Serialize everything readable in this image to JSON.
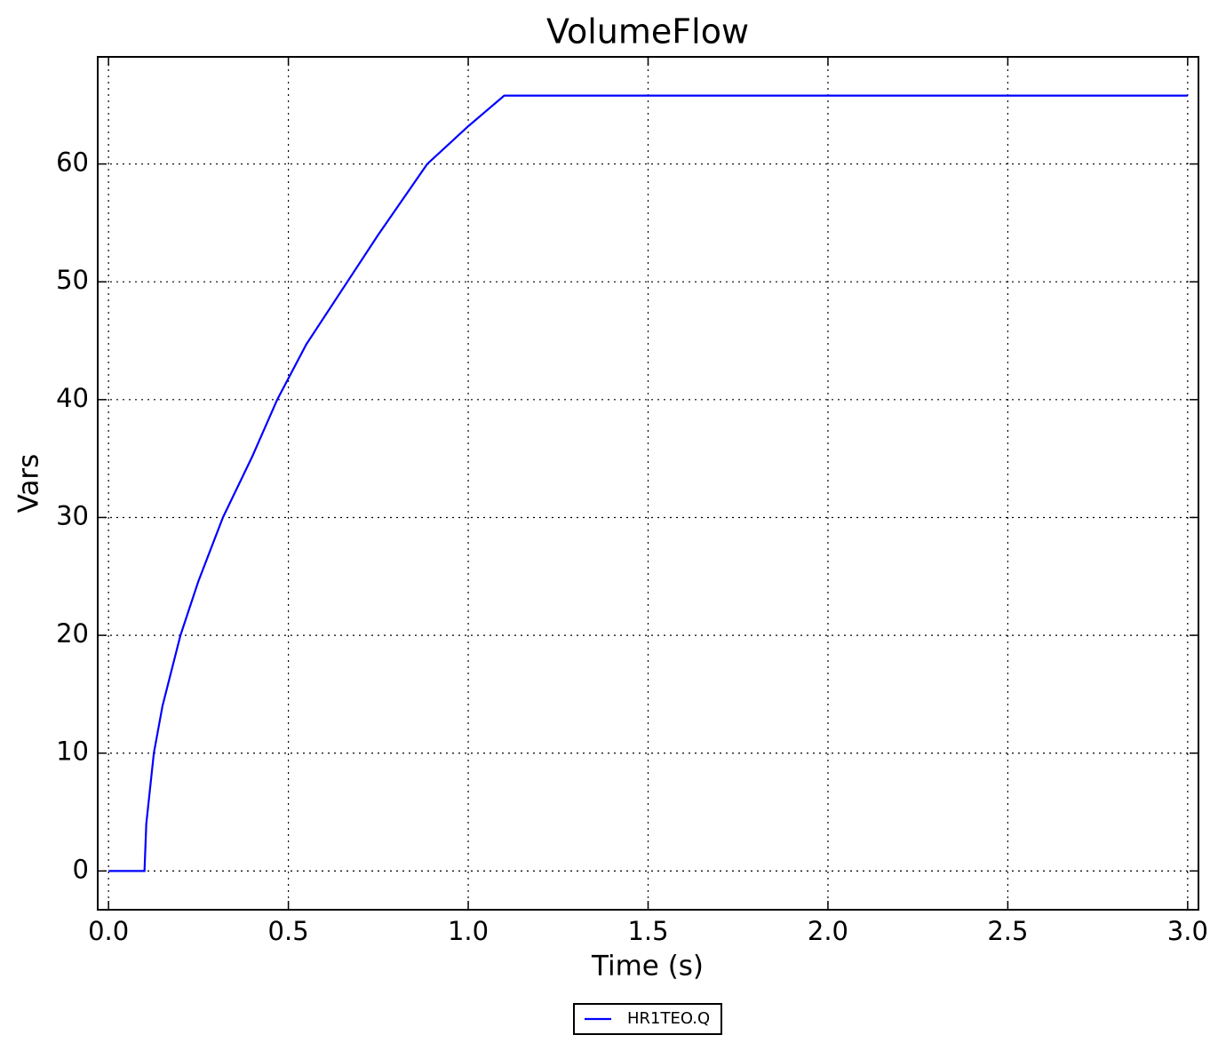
{
  "chart_data": {
    "type": "line",
    "title": "VolumeFlow",
    "x_label": "Time (s)",
    "y_label": "Vars",
    "x": [
      0,
      0.1,
      0.105,
      0.126,
      0.15,
      0.2,
      0.25,
      0.318,
      0.4,
      0.469,
      0.55,
      0.664,
      0.75,
      0.886,
      1.0,
      1.1,
      3.0
    ],
    "series": [
      {
        "name": "HR1TEO.Q",
        "color": "#0000ff",
        "values": [
          0,
          0,
          4,
          10,
          14,
          20,
          24.6,
          30,
          35.2,
          40,
          44.7,
          50,
          54,
          60,
          63.2,
          65.8,
          65.8
        ]
      }
    ],
    "xlim": [
      -0.03,
      3.03
    ],
    "ylim": [
      -3.29,
      69.09
    ],
    "xticks": [
      {
        "value": 0,
        "label": "0.0"
      },
      0.5,
      {
        "value": 1,
        "label": "1.0"
      },
      1.5,
      {
        "value": 2,
        "label": "2.0"
      },
      2.5,
      {
        "value": 3,
        "label": "3.0"
      }
    ],
    "yticks": [
      0,
      10,
      20,
      30,
      40,
      50,
      60
    ],
    "grid": true,
    "legend": "below"
  }
}
